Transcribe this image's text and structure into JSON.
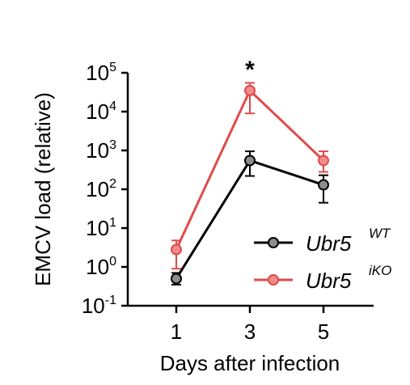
{
  "chart_data": {
    "type": "line",
    "title": "",
    "xlabel": "Days after infection",
    "ylabel": "EMCV load (relative)",
    "x": [
      1,
      3,
      5
    ],
    "xticks": [
      "1",
      "3",
      "5"
    ],
    "yscale": "log",
    "ylim": [
      0.1,
      100000
    ],
    "yticks": [
      {
        "value": 0.1,
        "base": "10",
        "exp": "-1"
      },
      {
        "value": 1,
        "base": "10",
        "exp": "0"
      },
      {
        "value": 10,
        "base": "10",
        "exp": "1"
      },
      {
        "value": 100,
        "base": "10",
        "exp": "2"
      },
      {
        "value": 1000,
        "base": "10",
        "exp": "3"
      },
      {
        "value": 10000,
        "base": "10",
        "exp": "4"
      },
      {
        "value": 100000,
        "base": "10",
        "exp": "5"
      }
    ],
    "grid": false,
    "legend_position": "bottom-right",
    "series": [
      {
        "name": "Ubr5",
        "name_sup": "WT",
        "color": "#000000",
        "marker_fill": "#8c8c8c",
        "values": [
          0.5,
          550,
          130
        ],
        "err_low": [
          0.35,
          220,
          45
        ],
        "err_high": [
          0.7,
          950,
          230
        ]
      },
      {
        "name": "Ubr5",
        "name_sup": "iKO",
        "color": "#e04a4a",
        "marker_fill": "#f08c8c",
        "values": [
          2.8,
          35000,
          550
        ],
        "err_low": [
          0.9,
          9000,
          280
        ],
        "err_high": [
          4.8,
          55000,
          950
        ]
      }
    ],
    "annotations": [
      {
        "x": 3,
        "text": "*"
      }
    ]
  }
}
